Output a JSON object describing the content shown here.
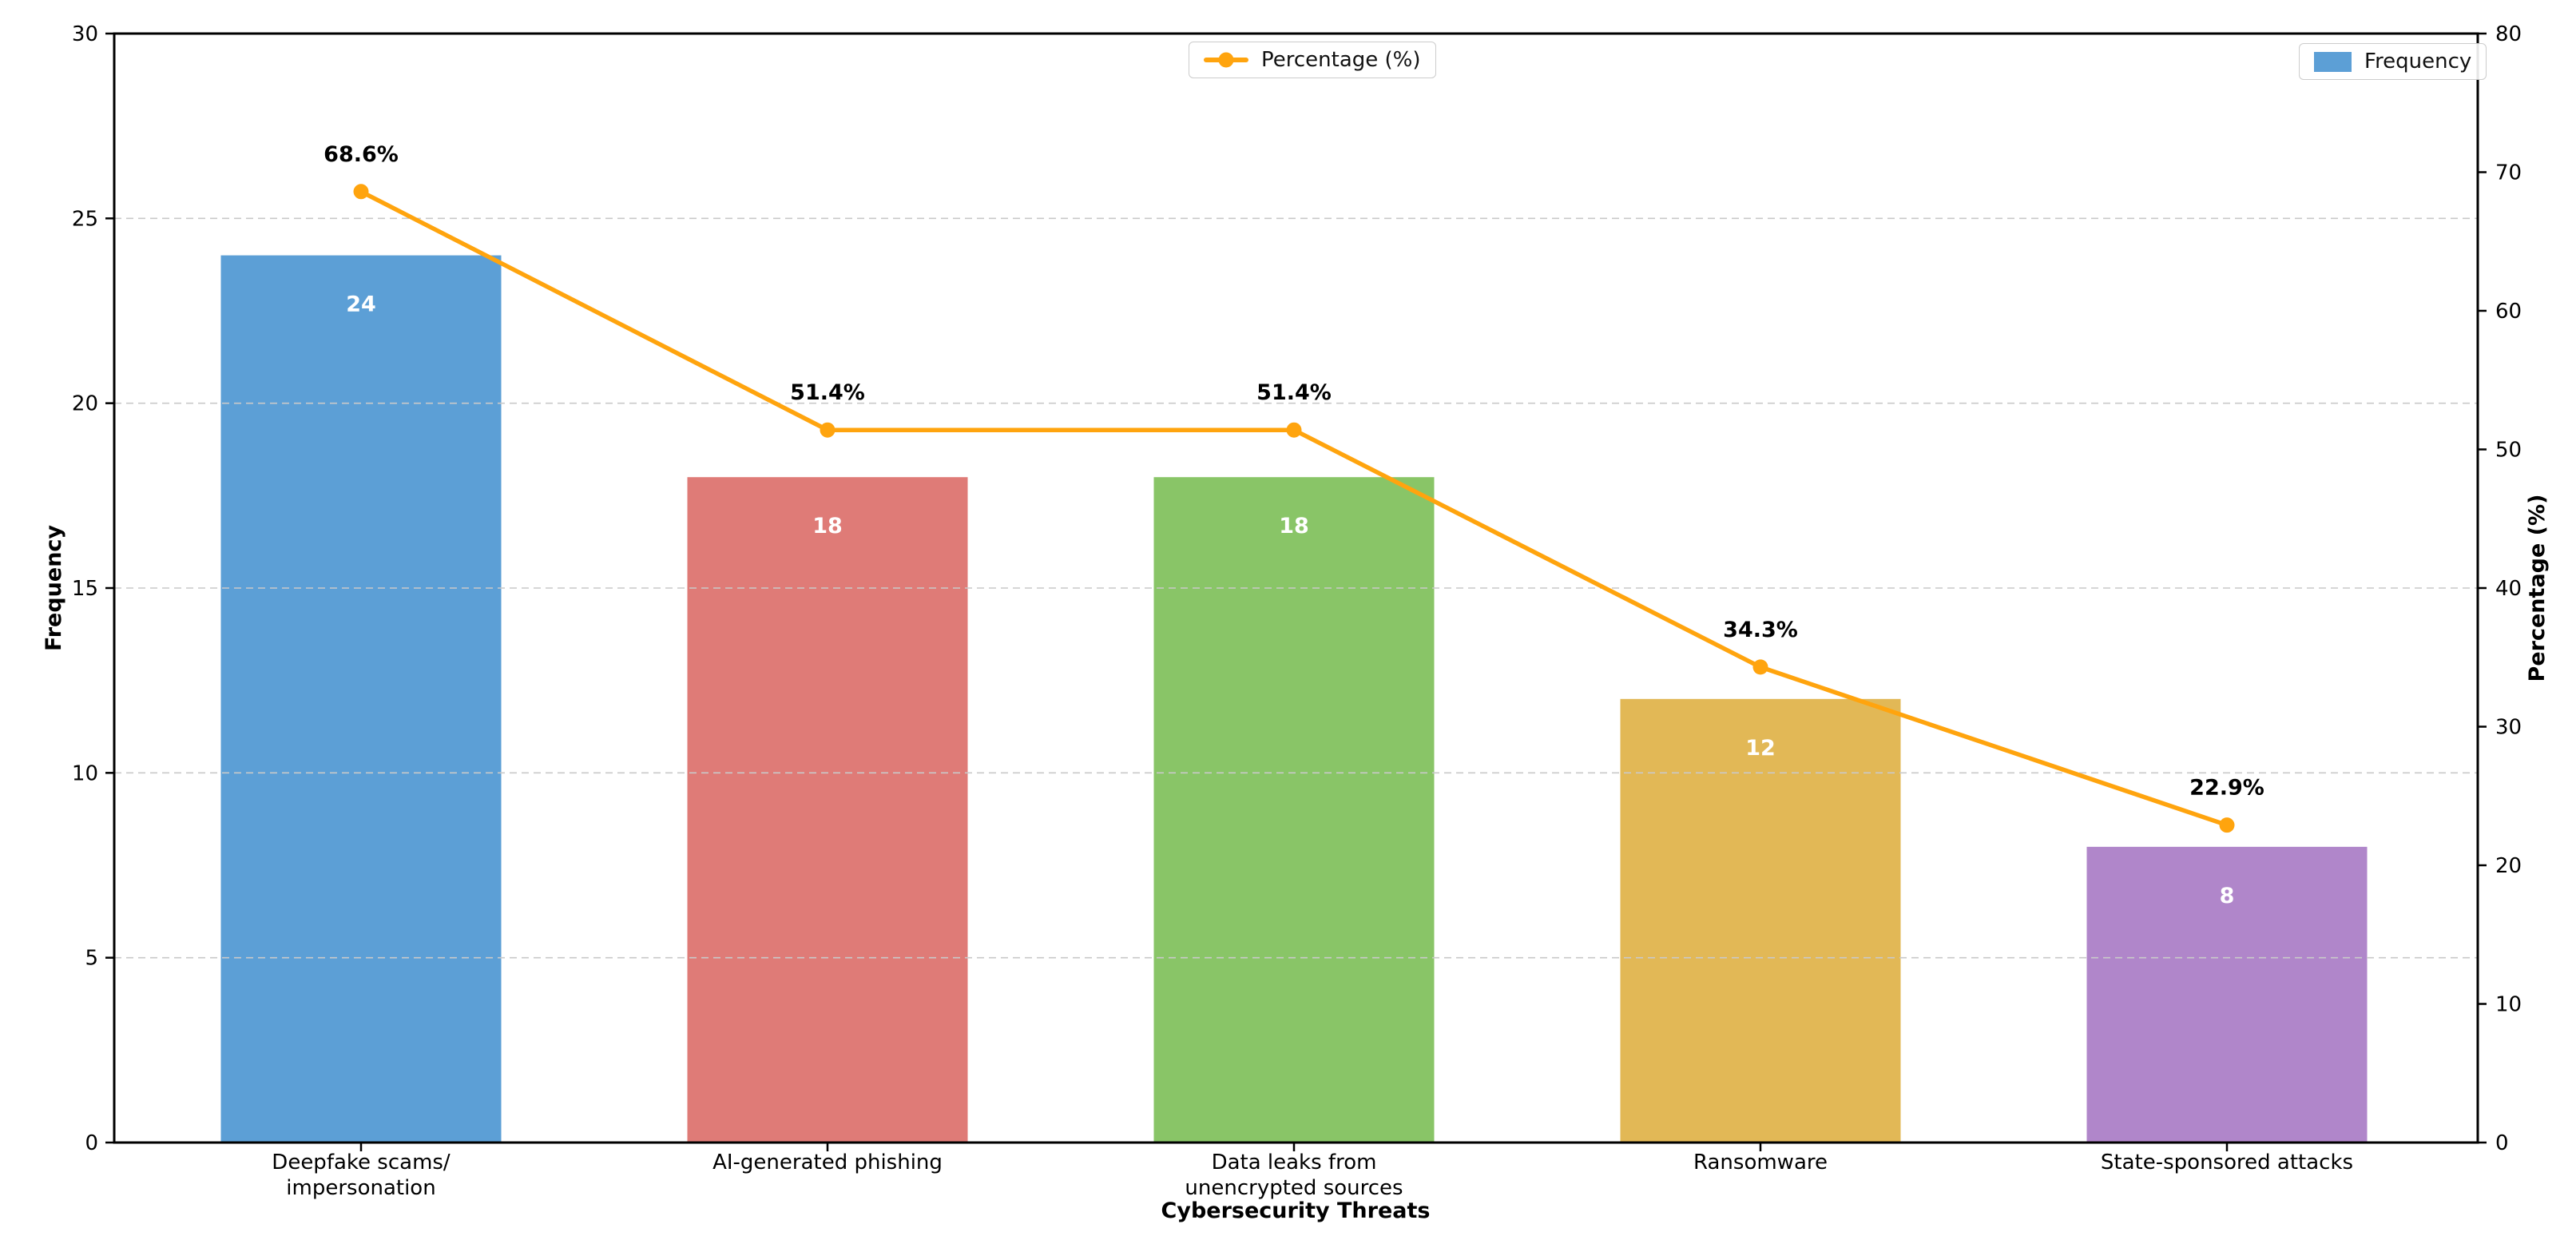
{
  "chart_data": {
    "type": "bar+line dual-axis (pareto)",
    "categories": [
      "Deepfake scams/\nimpersonation",
      "AI-generated phishing",
      "Data leaks from\nunencrypted sources",
      "Ransomware",
      "State-sponsored attacks"
    ],
    "bar_series": {
      "name": "Frequency",
      "values": [
        24,
        18,
        18,
        12,
        8
      ],
      "value_labels": [
        "24",
        "18",
        "18",
        "12",
        "8"
      ],
      "colors": [
        "#5C9FD6",
        "#DF7B77",
        "#89C567",
        "#E2B856",
        "#B086CA"
      ]
    },
    "line_series": {
      "name": "Percentage (%)",
      "values": [
        68.6,
        51.4,
        51.4,
        34.3,
        22.9
      ],
      "point_labels": [
        "68.6%",
        "51.4%",
        "51.4%",
        "34.3%",
        "22.9%"
      ],
      "color": "#FFA40E"
    },
    "left_axis": {
      "label": "Frequency",
      "min": 0,
      "max": 30,
      "ticks": [
        0,
        5,
        10,
        15,
        20,
        25,
        30
      ],
      "tick_labels": [
        "0",
        "5",
        "10",
        "15",
        "20",
        "25",
        "30"
      ]
    },
    "right_axis": {
      "label": "Percentage (%)",
      "min": 0,
      "max": 80,
      "ticks": [
        0,
        10,
        20,
        30,
        40,
        50,
        60,
        70,
        80
      ],
      "tick_labels": [
        "0",
        "10",
        "20",
        "30",
        "40",
        "50",
        "60",
        "70",
        "80"
      ]
    },
    "xlabel": "Cybersecurity Threats",
    "grid": {
      "show": true,
      "color": "#c9c9c9",
      "style": "dashed",
      "on_axis": "left"
    },
    "legend": {
      "percentage": {
        "label": "Percentage (%)",
        "position": "top-center",
        "marker": "line-dot"
      },
      "frequency": {
        "label": "Frequency",
        "position": "top-right",
        "marker": "patch"
      }
    },
    "frame_color": "#000000",
    "background": "#ffffff"
  }
}
